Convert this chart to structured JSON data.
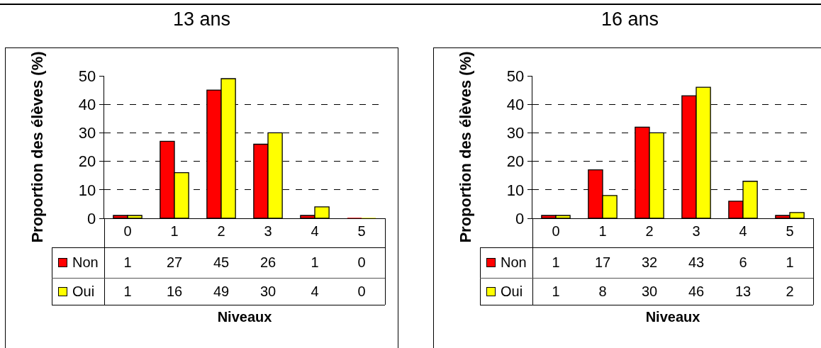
{
  "chart_data": [
    {
      "type": "bar",
      "title": "13 ans",
      "xlabel": "Niveaux",
      "ylabel": "Proportion des élèves (%)",
      "categories": [
        "0",
        "1",
        "2",
        "3",
        "4",
        "5"
      ],
      "series": [
        {
          "name": "Non",
          "color": "#ff0000",
          "values": [
            1,
            27,
            45,
            26,
            1,
            0
          ]
        },
        {
          "name": "Oui",
          "color": "#ffff00",
          "values": [
            1,
            16,
            49,
            30,
            4,
            0
          ]
        }
      ],
      "ylim": [
        0,
        50
      ],
      "yticks": [
        0,
        10,
        20,
        30,
        40,
        50
      ],
      "grid": "y",
      "legend": "bottom left",
      "data_labels": true
    },
    {
      "type": "bar",
      "title": "16 ans",
      "xlabel": "Niveaux",
      "ylabel": "Proportion des élèves (%)",
      "categories": [
        "0",
        "1",
        "2",
        "3",
        "4",
        "5"
      ],
      "series": [
        {
          "name": "Non",
          "color": "#ff0000",
          "values": [
            1,
            17,
            32,
            43,
            6,
            1
          ]
        },
        {
          "name": "Oui",
          "color": "#ffff00",
          "values": [
            1,
            8,
            30,
            46,
            13,
            2
          ]
        }
      ],
      "ylim": [
        0,
        50
      ],
      "yticks": [
        0,
        10,
        20,
        30,
        40,
        50
      ],
      "grid": "y",
      "legend": "bottom left",
      "data_labels": true
    }
  ]
}
